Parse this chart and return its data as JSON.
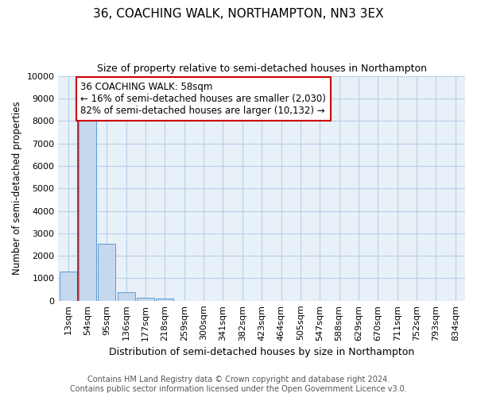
{
  "title": "36, COACHING WALK, NORTHAMPTON, NN3 3EX",
  "subtitle": "Size of property relative to semi-detached houses in Northampton",
  "xlabel": "Distribution of semi-detached houses by size in Northampton",
  "ylabel": "Number of semi-detached properties",
  "categories": [
    "13sqm",
    "54sqm",
    "95sqm",
    "136sqm",
    "177sqm",
    "218sqm",
    "259sqm",
    "300sqm",
    "341sqm",
    "382sqm",
    "423sqm",
    "464sqm",
    "505sqm",
    "547sqm",
    "588sqm",
    "629sqm",
    "670sqm",
    "711sqm",
    "752sqm",
    "793sqm",
    "834sqm"
  ],
  "values": [
    1300,
    8050,
    2530,
    390,
    150,
    110,
    0,
    0,
    0,
    0,
    0,
    0,
    0,
    0,
    0,
    0,
    0,
    0,
    0,
    0,
    0
  ],
  "bar_color": "#c5d8ee",
  "bar_edge_color": "#5b9bd5",
  "property_line_x": 0.5,
  "annotation_text_line1": "36 COACHING WALK: 58sqm",
  "annotation_text_line2": "← 16% of semi-detached houses are smaller (2,030)",
  "annotation_text_line3": "82% of semi-detached houses are larger (10,132) →",
  "footer_line1": "Contains HM Land Registry data © Crown copyright and database right 2024.",
  "footer_line2": "Contains public sector information licensed under the Open Government Licence v3.0.",
  "ylim": [
    0,
    10000
  ],
  "background_color": "#ffffff",
  "plot_bg_color": "#e8f0f8",
  "grid_color": "#b8cfe8",
  "title_fontsize": 11,
  "subtitle_fontsize": 9,
  "ylabel_fontsize": 8.5,
  "xlabel_fontsize": 9,
  "tick_fontsize": 8,
  "footer_fontsize": 7,
  "annotation_fontsize": 8.5,
  "annotation_box_color": "#ffffff",
  "annotation_box_edgecolor": "#cc0000",
  "red_line_color": "#cc0000"
}
